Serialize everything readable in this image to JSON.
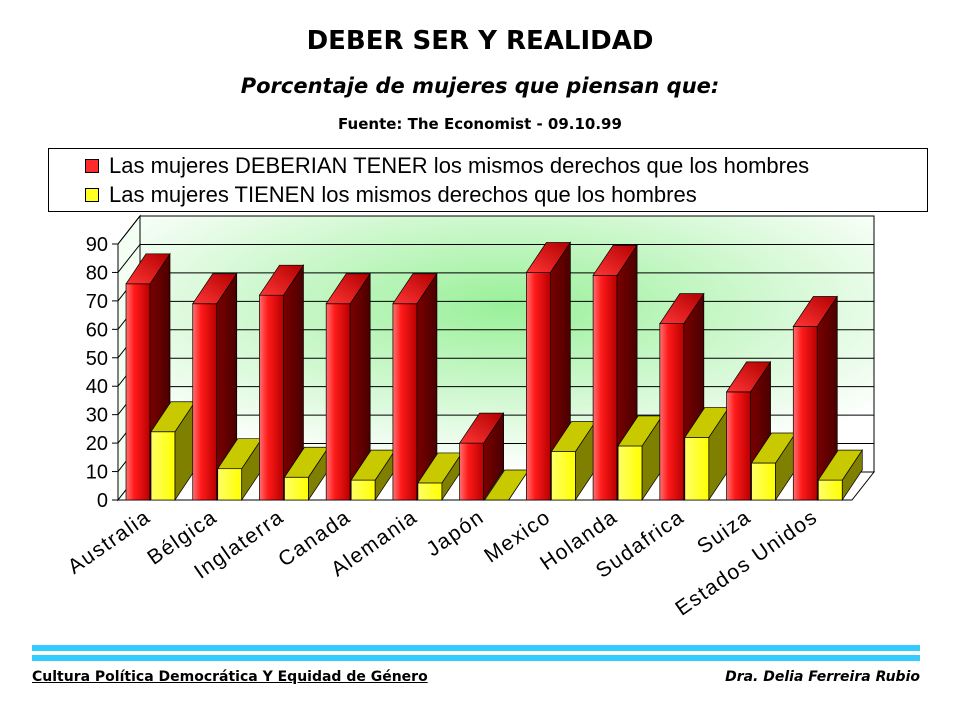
{
  "header": {
    "title": "DEBER SER Y REALIDAD",
    "subtitle": "Porcentaje de mujeres que piensan que:",
    "source": "Fuente: The Economist - 09.10.99"
  },
  "legend": {
    "items": [
      {
        "label": "Las mujeres DEBERIAN TENER los mismos derechos que los hombres",
        "color": "#ff2a2a"
      },
      {
        "label": "Las mujeres TIENEN los mismos derechos que los hombres",
        "color": "#ffff22"
      }
    ]
  },
  "chart_data": {
    "type": "bar",
    "title": "DEBER SER Y REALIDAD",
    "categories": [
      "Australia",
      "Bélgica",
      "Inglaterra",
      "Canada",
      "Alemania",
      "Japón",
      "Mexico",
      "Holanda",
      "Sudafrica",
      "Suiza",
      "Estados Unidos"
    ],
    "series": [
      {
        "name": "Las mujeres DEBERIAN TENER los mismos derechos que los hombres",
        "color": "#ff2a2a",
        "values": [
          76,
          69,
          72,
          69,
          69,
          20,
          80,
          79,
          62,
          38,
          61
        ]
      },
      {
        "name": "Las mujeres TIENEN los mismos derechos que los hombres",
        "color": "#ffff22",
        "values": [
          24,
          11,
          8,
          7,
          6,
          0,
          17,
          19,
          22,
          13,
          7
        ]
      }
    ],
    "ylim": [
      0,
      90
    ],
    "yticks": [
      0,
      10,
      20,
      30,
      40,
      50,
      60,
      70,
      80,
      90
    ],
    "grid": true,
    "style": "3d",
    "legend_position": "top"
  },
  "footer": {
    "left": "Cultura Política Democrática Y Equidad de Género",
    "right": "Dra. Delia Ferreira Rubio"
  }
}
